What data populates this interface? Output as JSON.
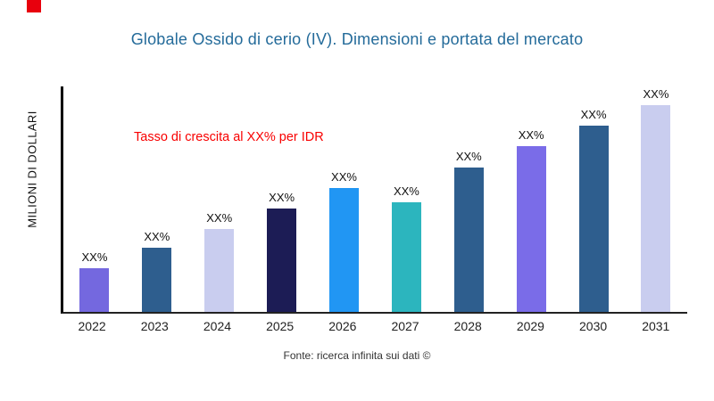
{
  "page": {
    "title": "Globale Ossido di cerio (IV). Dimensioni e portata del mercato",
    "y_axis_label": "MILIONI DI DOLLARI",
    "growth_note": "Tasso di crescita al XX% per IDR",
    "footer": "Fonte: ricerca infinita sui dati ©"
  },
  "colors": {
    "title": "#246B9A",
    "growth_note": "#F80000",
    "corner_mark": "#E8000D"
  },
  "chart_data": {
    "type": "bar",
    "title": "Globale Ossido di cerio (IV). Dimensioni e portata del mercato",
    "categories": [
      "2022",
      "2023",
      "2024",
      "2025",
      "2026",
      "2027",
      "2028",
      "2029",
      "2030",
      "2031"
    ],
    "values": [
      21,
      31,
      40,
      50,
      60,
      53,
      70,
      80,
      90,
      100
    ],
    "bar_labels": [
      "XX%",
      "XX%",
      "XX%",
      "XX%",
      "XX%",
      "XX%",
      "XX%",
      "XX%",
      "XX%",
      "XX%"
    ],
    "bar_colors": [
      "#7468DF",
      "#2E5E8E",
      "#C9CDEF",
      "#1C1C55",
      "#2196F3",
      "#2CB5BE",
      "#2E5E8E",
      "#7A6CE8",
      "#2E5E8E",
      "#C9CDEF"
    ],
    "xlabel": "",
    "ylabel": "MILIONI DI DOLLARI",
    "ylim": [
      0,
      110
    ],
    "grid": false,
    "legend": false,
    "annotation": "Tasso di crescita al XX% per IDR"
  }
}
